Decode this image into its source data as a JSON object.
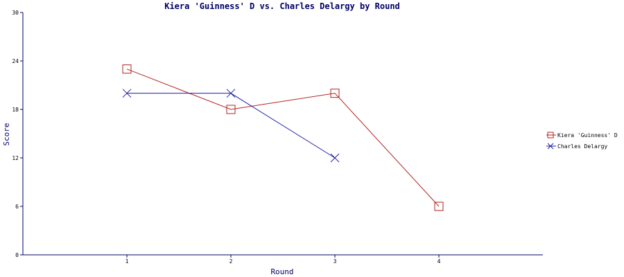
{
  "chart_data": {
    "type": "line",
    "title": "Kiera 'Guinness' D vs. Charles Delargy by Round",
    "xlabel": "Round",
    "ylabel": "Score",
    "xlim": [
      0,
      5
    ],
    "ylim": [
      0,
      30
    ],
    "x_ticks": [
      "1",
      "2",
      "3",
      "4"
    ],
    "y_ticks": [
      "0",
      "6",
      "12",
      "18",
      "24",
      "30"
    ],
    "legend_position": "right",
    "grid": false,
    "series": [
      {
        "name": "Kiera 'Guinness' D",
        "color": "#b22222",
        "marker": "square",
        "points": [
          {
            "x": 1,
            "y": 23
          },
          {
            "x": 2,
            "y": 18
          },
          {
            "x": 3,
            "y": 20
          },
          {
            "x": 4,
            "y": 6
          }
        ]
      },
      {
        "name": "Charles Delargy",
        "color": "#1c1caa",
        "marker": "x",
        "points": [
          {
            "x": 1,
            "y": 20
          },
          {
            "x": 2,
            "y": 20
          },
          {
            "x": 3,
            "y": 12
          }
        ]
      }
    ]
  }
}
